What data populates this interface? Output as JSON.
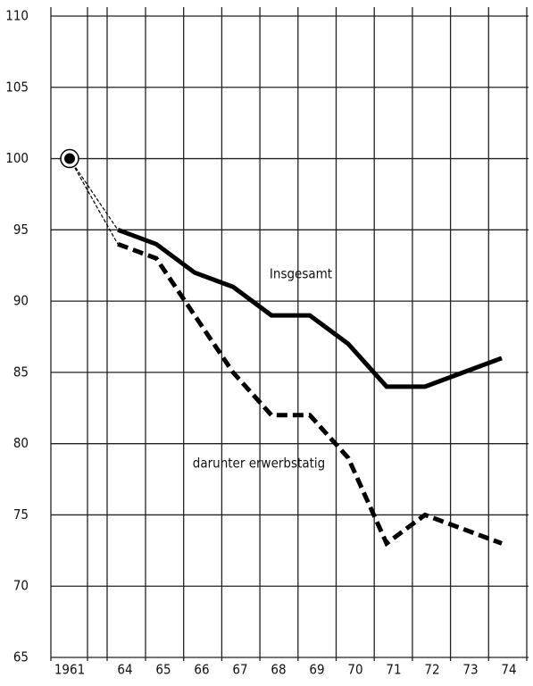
{
  "chart_data": {
    "type": "line",
    "categories": [
      "1961",
      "64",
      "65",
      "66",
      "67",
      "68",
      "69",
      "70",
      "71",
      "72",
      "73",
      "74"
    ],
    "series": [
      {
        "name": "Insgesamt",
        "color": "#000000",
        "values": [
          100,
          95,
          94,
          92,
          91,
          89,
          89,
          87,
          84,
          84,
          85,
          86
        ]
      },
      {
        "name": "darunter erwerbstatig",
        "color": "#000000",
        "values": [
          100,
          94,
          93,
          89,
          85,
          82,
          82,
          79,
          73,
          75,
          74,
          73
        ]
      }
    ],
    "ylim": [
      65,
      110
    ],
    "yticks": [
      65,
      70,
      75,
      80,
      85,
      90,
      95,
      100,
      105,
      110
    ],
    "grid": true
  }
}
